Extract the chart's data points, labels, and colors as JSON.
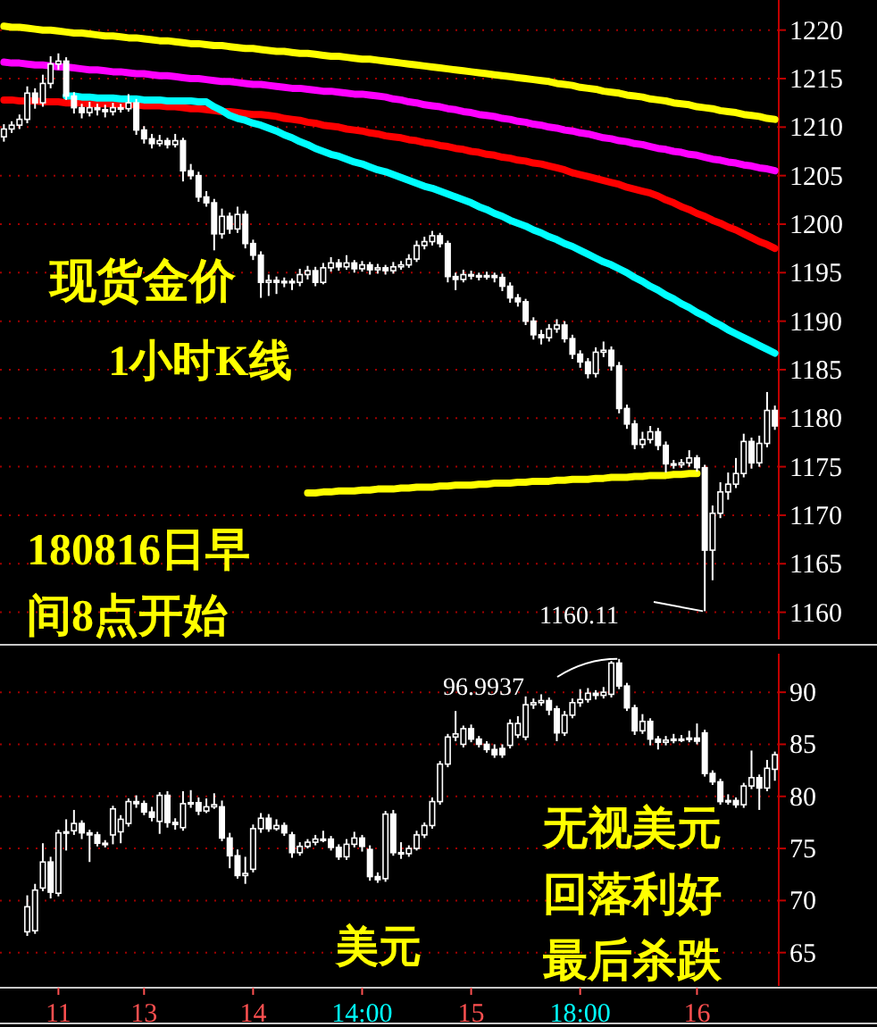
{
  "chart_data": [
    {
      "type": "candlestick",
      "tick_labels": "y",
      "grid": "y",
      "ylim": [
        1157.2,
        1223.1
      ],
      "yticks": [
        1160,
        1165,
        1170,
        1175,
        1180,
        1185,
        1190,
        1195,
        1200,
        1205,
        1210,
        1215,
        1220
      ],
      "annotations": [
        "现货金价",
        "1小时K线",
        "180816日早",
        "间8点开始",
        "1160.11"
      ],
      "series": [
        {
          "type": "candlestick",
          "color": "#ffffff",
          "ohlc": [
            [
              1209.0,
              1210.3,
              1208.5,
              1209.8
            ],
            [
              1209.8,
              1210.6,
              1209.4,
              1210.2
            ],
            [
              1210.2,
              1211.3,
              1209.8,
              1210.8
            ],
            [
              1210.8,
              1214.2,
              1210.4,
              1213.5
            ],
            [
              1213.5,
              1214.0,
              1211.9,
              1212.5
            ],
            [
              1212.5,
              1215.4,
              1212.1,
              1214.5
            ],
            [
              1214.5,
              1217.3,
              1214.0,
              1216.5
            ],
            [
              1216.5,
              1217.6,
              1215.9,
              1216.8
            ],
            [
              1216.8,
              1217.2,
              1212.8,
              1213.2
            ],
            [
              1213.2,
              1213.6,
              1211.4,
              1212.0
            ],
            [
              1212.0,
              1212.4,
              1210.9,
              1211.5
            ],
            [
              1211.5,
              1212.6,
              1211.1,
              1212.0
            ],
            [
              1212.0,
              1212.4,
              1211.2,
              1211.8
            ],
            [
              1211.8,
              1212.3,
              1211.0,
              1211.6
            ],
            [
              1211.6,
              1212.5,
              1211.2,
              1212.0
            ],
            [
              1212.0,
              1212.4,
              1211.5,
              1211.9
            ],
            [
              1211.9,
              1213.4,
              1211.6,
              1212.5
            ],
            [
              1212.5,
              1212.9,
              1209.2,
              1209.7
            ],
            [
              1209.7,
              1210.1,
              1208.3,
              1208.8
            ],
            [
              1208.8,
              1209.3,
              1207.8,
              1208.3
            ],
            [
              1208.3,
              1209.2,
              1208.0,
              1208.6
            ],
            [
              1208.6,
              1208.9,
              1207.8,
              1208.2
            ],
            [
              1208.2,
              1209.3,
              1207.9,
              1208.6
            ],
            [
              1208.6,
              1208.9,
              1204.4,
              1205.5
            ],
            [
              1205.5,
              1206.2,
              1204.6,
              1205.0
            ],
            [
              1205.0,
              1205.4,
              1202.3,
              1202.8
            ],
            [
              1202.8,
              1203.4,
              1201.8,
              1202.2
            ],
            [
              1202.2,
              1202.6,
              1197.3,
              1199.0
            ],
            [
              1199.0,
              1201.6,
              1198.5,
              1200.8
            ],
            [
              1200.8,
              1201.2,
              1199.0,
              1199.5
            ],
            [
              1199.5,
              1201.8,
              1199.1,
              1201.0
            ],
            [
              1201.0,
              1201.4,
              1197.5,
              1198.0
            ],
            [
              1198.0,
              1198.4,
              1196.3,
              1196.8
            ],
            [
              1196.8,
              1197.2,
              1192.4,
              1194.0
            ],
            [
              1194.0,
              1194.8,
              1192.6,
              1194.2
            ],
            [
              1194.2,
              1194.6,
              1192.8,
              1194.0
            ],
            [
              1194.0,
              1194.5,
              1193.5,
              1194.1
            ],
            [
              1194.1,
              1194.4,
              1193.2,
              1194.0
            ],
            [
              1194.0,
              1195.4,
              1193.6,
              1194.8
            ],
            [
              1194.8,
              1195.7,
              1194.3,
              1195.2
            ],
            [
              1195.2,
              1195.6,
              1193.6,
              1194.0
            ],
            [
              1194.0,
              1196.0,
              1193.8,
              1195.5
            ],
            [
              1195.5,
              1196.6,
              1195.1,
              1196.0
            ],
            [
              1196.0,
              1196.4,
              1195.2,
              1195.6
            ],
            [
              1195.6,
              1196.8,
              1195.3,
              1196.0
            ],
            [
              1196.0,
              1196.3,
              1195.0,
              1195.4
            ],
            [
              1195.4,
              1196.2,
              1195.1,
              1195.8
            ],
            [
              1195.8,
              1196.1,
              1194.8,
              1195.3
            ],
            [
              1195.3,
              1195.9,
              1194.9,
              1195.5
            ],
            [
              1195.5,
              1195.8,
              1194.8,
              1195.2
            ],
            [
              1195.2,
              1196.1,
              1194.9,
              1195.6
            ],
            [
              1195.6,
              1196.2,
              1195.3,
              1195.8
            ],
            [
              1195.8,
              1196.9,
              1195.5,
              1196.4
            ],
            [
              1196.4,
              1198.3,
              1196.1,
              1197.8
            ],
            [
              1197.8,
              1198.7,
              1197.4,
              1198.2
            ],
            [
              1198.2,
              1199.3,
              1197.8,
              1198.8
            ],
            [
              1198.8,
              1199.1,
              1197.6,
              1198.0
            ],
            [
              1198.0,
              1198.3,
              1194.0,
              1194.6
            ],
            [
              1194.6,
              1195.0,
              1193.2,
              1194.3
            ],
            [
              1194.3,
              1195.3,
              1194.0,
              1194.8
            ],
            [
              1194.8,
              1195.2,
              1194.3,
              1194.7
            ],
            [
              1194.7,
              1195.0,
              1194.2,
              1194.6
            ],
            [
              1194.6,
              1195.1,
              1194.3,
              1194.7
            ],
            [
              1194.7,
              1195.0,
              1194.0,
              1194.5
            ],
            [
              1194.5,
              1194.9,
              1193.1,
              1193.6
            ],
            [
              1193.6,
              1194.0,
              1191.9,
              1192.4
            ],
            [
              1192.4,
              1192.8,
              1191.5,
              1192.0
            ],
            [
              1192.0,
              1192.3,
              1189.6,
              1190.0
            ],
            [
              1190.0,
              1190.4,
              1188.1,
              1188.6
            ],
            [
              1188.6,
              1189.1,
              1187.6,
              1188.3
            ],
            [
              1188.3,
              1189.7,
              1187.9,
              1189.2
            ],
            [
              1189.2,
              1190.2,
              1188.8,
              1189.6
            ],
            [
              1189.6,
              1190.0,
              1187.8,
              1188.2
            ],
            [
              1188.2,
              1188.6,
              1186.1,
              1186.6
            ],
            [
              1186.6,
              1187.0,
              1185.2,
              1185.8
            ],
            [
              1185.8,
              1186.2,
              1184.1,
              1184.6
            ],
            [
              1184.6,
              1187.3,
              1184.2,
              1186.8
            ],
            [
              1186.8,
              1187.9,
              1186.3,
              1187.0
            ],
            [
              1187.0,
              1187.4,
              1184.9,
              1185.4
            ],
            [
              1185.4,
              1185.8,
              1180.5,
              1181.0
            ],
            [
              1181.0,
              1181.4,
              1178.9,
              1179.4
            ],
            [
              1179.4,
              1179.8,
              1176.8,
              1177.3
            ],
            [
              1177.3,
              1178.6,
              1176.9,
              1177.8
            ],
            [
              1177.8,
              1179.2,
              1177.4,
              1178.6
            ],
            [
              1178.6,
              1179.0,
              1176.7,
              1177.2
            ],
            [
              1177.2,
              1177.6,
              1174.4,
              1175.3
            ],
            [
              1175.3,
              1175.7,
              1174.8,
              1175.2
            ],
            [
              1175.2,
              1175.8,
              1174.9,
              1175.4
            ],
            [
              1175.4,
              1176.7,
              1175.0,
              1175.9
            ],
            [
              1175.9,
              1176.2,
              1174.5,
              1174.9
            ],
            [
              1174.9,
              1175.2,
              1160.11,
              1166.4
            ],
            [
              1166.4,
              1171.0,
              1163.3,
              1170.2
            ],
            [
              1170.2,
              1173.4,
              1169.7,
              1172.4
            ],
            [
              1172.4,
              1174.4,
              1171.6,
              1173.2
            ],
            [
              1173.2,
              1175.9,
              1172.8,
              1174.3
            ],
            [
              1174.3,
              1178.4,
              1173.9,
              1177.6
            ],
            [
              1177.6,
              1178.0,
              1174.8,
              1175.4
            ],
            [
              1175.4,
              1178.2,
              1175.0,
              1177.4
            ],
            [
              1177.4,
              1182.7,
              1177.0,
              1180.8
            ],
            [
              1180.8,
              1181.3,
              1178.8,
              1179.2
            ]
          ]
        },
        {
          "type": "line",
          "color": "#ffff00",
          "values": [
            1220.4,
            1220.3,
            1220.3,
            1220.2,
            1220.1,
            1220.0,
            1220.0,
            1219.9,
            1219.8,
            1219.7,
            1219.7,
            1219.6,
            1219.5,
            1219.4,
            1219.4,
            1219.3,
            1219.2,
            1219.2,
            1219.1,
            1219.0,
            1218.9,
            1218.9,
            1218.8,
            1218.7,
            1218.6,
            1218.6,
            1218.5,
            1218.4,
            1218.4,
            1218.3,
            1218.2,
            1218.1,
            1218.1,
            1218.0,
            1217.9,
            1217.8,
            1217.8,
            1217.7,
            1217.6,
            1217.6,
            1217.5,
            1217.4,
            1217.3,
            1217.3,
            1217.2,
            1217.1,
            1217.0,
            1217.0,
            1216.9,
            1216.8,
            1216.7,
            1216.6,
            1216.5,
            1216.4,
            1216.3,
            1216.2,
            1216.1,
            1216.0,
            1215.9,
            1215.8,
            1215.7,
            1215.6,
            1215.5,
            1215.4,
            1215.3,
            1215.2,
            1215.1,
            1215.0,
            1214.9,
            1214.8,
            1214.7,
            1214.5,
            1214.4,
            1214.3,
            1214.1,
            1214.0,
            1213.9,
            1213.7,
            1213.6,
            1213.5,
            1213.3,
            1213.2,
            1213.1,
            1212.9,
            1212.8,
            1212.7,
            1212.5,
            1212.4,
            1212.3,
            1212.1,
            1212.0,
            1211.9,
            1211.7,
            1211.6,
            1211.5,
            1211.3,
            1211.2,
            1211.1,
            1210.9,
            1210.8
          ]
        },
        {
          "type": "line",
          "color": "#ff00ff",
          "values": [
            1216.7,
            1216.6,
            1216.6,
            1216.5,
            1216.4,
            1216.4,
            1216.3,
            1216.2,
            1216.2,
            1216.1,
            1216.0,
            1215.9,
            1215.9,
            1215.8,
            1215.7,
            1215.7,
            1215.6,
            1215.5,
            1215.5,
            1215.4,
            1215.3,
            1215.3,
            1215.2,
            1215.1,
            1215.0,
            1215.0,
            1214.9,
            1214.8,
            1214.7,
            1214.7,
            1214.6,
            1214.5,
            1214.4,
            1214.4,
            1214.3,
            1214.2,
            1214.1,
            1214.0,
            1214.0,
            1213.9,
            1213.8,
            1213.7,
            1213.7,
            1213.6,
            1213.5,
            1213.4,
            1213.4,
            1213.3,
            1213.2,
            1213.1,
            1212.9,
            1212.8,
            1212.6,
            1212.5,
            1212.3,
            1212.2,
            1212.1,
            1211.9,
            1211.8,
            1211.6,
            1211.5,
            1211.3,
            1211.2,
            1211.1,
            1210.9,
            1210.8,
            1210.6,
            1210.5,
            1210.3,
            1210.2,
            1210.0,
            1209.9,
            1209.7,
            1209.6,
            1209.4,
            1209.3,
            1209.1,
            1208.9,
            1208.8,
            1208.6,
            1208.5,
            1208.3,
            1208.2,
            1208.0,
            1207.8,
            1207.7,
            1207.5,
            1207.4,
            1207.2,
            1207.1,
            1206.9,
            1206.7,
            1206.6,
            1206.4,
            1206.3,
            1206.1,
            1206.0,
            1205.8,
            1205.7,
            1205.5
          ]
        },
        {
          "type": "line",
          "color": "#ff0000",
          "values": [
            1212.8,
            1212.8,
            1212.7,
            1212.7,
            1212.7,
            1212.6,
            1212.6,
            1212.6,
            1212.5,
            1212.5,
            1212.5,
            1212.4,
            1212.4,
            1212.4,
            1212.4,
            1212.3,
            1212.3,
            1212.3,
            1212.2,
            1212.2,
            1212.2,
            1212.1,
            1212.1,
            1212.0,
            1211.9,
            1211.9,
            1211.8,
            1211.7,
            1211.6,
            1211.6,
            1211.5,
            1211.4,
            1211.3,
            1211.3,
            1211.2,
            1211.1,
            1210.9,
            1210.8,
            1210.7,
            1210.5,
            1210.4,
            1210.2,
            1210.1,
            1210.0,
            1209.8,
            1209.7,
            1209.6,
            1209.4,
            1209.3,
            1209.1,
            1209.0,
            1208.9,
            1208.7,
            1208.6,
            1208.4,
            1208.3,
            1208.1,
            1208.0,
            1207.8,
            1207.7,
            1207.5,
            1207.4,
            1207.2,
            1207.1,
            1206.9,
            1206.8,
            1206.6,
            1206.5,
            1206.3,
            1206.2,
            1206.0,
            1205.8,
            1205.6,
            1205.3,
            1205.1,
            1204.9,
            1204.7,
            1204.5,
            1204.3,
            1204.1,
            1203.8,
            1203.6,
            1203.4,
            1203.2,
            1202.9,
            1202.5,
            1202.2,
            1201.8,
            1201.5,
            1201.1,
            1200.8,
            1200.4,
            1200.1,
            1199.7,
            1199.4,
            1199.0,
            1198.6,
            1198.2,
            1197.9,
            1197.5
          ]
        },
        {
          "type": "line",
          "color": "#00ffff",
          "values": [
            null,
            null,
            null,
            null,
            null,
            null,
            null,
            null,
            1213.2,
            1213.2,
            1213.1,
            1213.1,
            1213.0,
            1213.0,
            1213.0,
            1212.9,
            1212.9,
            1212.9,
            1212.8,
            1212.8,
            1212.8,
            1212.7,
            1212.7,
            1212.7,
            1212.7,
            1212.6,
            1212.6,
            1212.1,
            1211.7,
            1211.2,
            1210.9,
            1210.7,
            1210.4,
            1210.2,
            1209.9,
            1209.6,
            1209.2,
            1208.9,
            1208.5,
            1208.2,
            1207.8,
            1207.5,
            1207.2,
            1207.0,
            1206.7,
            1206.4,
            1206.2,
            1205.9,
            1205.6,
            1205.4,
            1205.1,
            1204.8,
            1204.5,
            1204.2,
            1203.9,
            1203.7,
            1203.4,
            1203.1,
            1202.8,
            1202.5,
            1202.2,
            1201.8,
            1201.5,
            1201.1,
            1200.8,
            1200.4,
            1200.1,
            1199.8,
            1199.4,
            1199.1,
            1198.7,
            1198.4,
            1198.0,
            1197.7,
            1197.3,
            1196.9,
            1196.5,
            1196.1,
            1195.8,
            1195.4,
            1195.0,
            1194.5,
            1194.1,
            1193.6,
            1193.2,
            1192.7,
            1192.3,
            1191.8,
            1191.4,
            1190.9,
            1190.5,
            1190.0,
            1189.6,
            1189.1,
            1188.7,
            1188.3,
            1187.9,
            1187.5,
            1187.1,
            1186.7
          ]
        },
        {
          "type": "line",
          "color": "#ffff00",
          "values": [
            null,
            null,
            null,
            null,
            null,
            null,
            null,
            null,
            null,
            null,
            null,
            null,
            null,
            null,
            null,
            null,
            null,
            null,
            null,
            null,
            null,
            null,
            null,
            null,
            null,
            null,
            null,
            null,
            null,
            null,
            null,
            null,
            null,
            null,
            null,
            null,
            null,
            null,
            null,
            1172.3,
            1172.3,
            1172.4,
            1172.4,
            1172.5,
            1172.5,
            1172.5,
            1172.6,
            1172.6,
            1172.7,
            1172.7,
            1172.7,
            1172.8,
            1172.8,
            1172.9,
            1172.9,
            1172.9,
            1173.0,
            1173.0,
            1173.1,
            1173.1,
            1173.1,
            1173.2,
            1173.2,
            1173.3,
            1173.3,
            1173.3,
            1173.4,
            1173.4,
            1173.5,
            1173.5,
            1173.5,
            1173.6,
            1173.6,
            1173.7,
            1173.7,
            1173.7,
            1173.8,
            1173.8,
            1173.9,
            1173.9,
            1173.9,
            1174.0,
            1174.0,
            1174.1,
            1174.1,
            1174.1,
            1174.2,
            1174.2,
            1174.3,
            1174.3,
            null,
            null,
            null,
            null,
            null,
            null,
            null,
            null,
            null,
            null
          ]
        }
      ]
    },
    {
      "type": "candlestick",
      "grid": "y",
      "ylim": [
        61.8,
        93.7
      ],
      "yticks": [
        65,
        70,
        75,
        80,
        85,
        90
      ],
      "categories": [
        null,
        null,
        null,
        null,
        null,
        null,
        null,
        "11",
        null,
        null,
        null,
        null,
        null,
        null,
        null,
        null,
        null,
        null,
        "13",
        null,
        null,
        null,
        null,
        null,
        null,
        null,
        null,
        null,
        null,
        null,
        null,
        null,
        "14",
        null,
        null,
        null,
        null,
        null,
        null,
        null,
        null,
        null,
        null,
        null,
        null,
        null,
        "14:00",
        null,
        null,
        null,
        null,
        null,
        null,
        null,
        null,
        null,
        null,
        null,
        null,
        null,
        "15",
        null,
        null,
        null,
        null,
        null,
        null,
        null,
        null,
        null,
        null,
        null,
        null,
        null,
        "18:00",
        null,
        null,
        null,
        null,
        null,
        null,
        null,
        null,
        null,
        null,
        null,
        null,
        null,
        null,
        "16",
        null,
        null,
        null,
        null,
        null,
        null,
        null,
        null,
        null,
        null
      ],
      "annotations": [
        "96.9937",
        "美元",
        "无视美元",
        "回落利好",
        "最后杀跌"
      ],
      "series": [
        {
          "type": "candlestick",
          "color": "#ffffff",
          "ohlc": [
            null,
            null,
            null,
            [
              67.0,
              70.5,
              66.6,
              69.4
            ],
            [
              67.1,
              71.6,
              66.8,
              71.0
            ],
            [
              71.2,
              75.5,
              70.9,
              73.7
            ],
            [
              73.7,
              74.2,
              70.2,
              70.8
            ],
            [
              70.7,
              76.8,
              70.4,
              76.5
            ],
            [
              76.5,
              77.8,
              74.8,
              76.6
            ],
            [
              76.7,
              78.7,
              76.3,
              77.4
            ],
            [
              77.4,
              77.7,
              75.9,
              76.5
            ],
            [
              76.5,
              76.8,
              73.7,
              76.3
            ],
            [
              76.3,
              76.6,
              75.2,
              75.5
            ],
            [
              75.5,
              75.8,
              75.1,
              75.4
            ],
            [
              76.3,
              79.1,
              75.4,
              78.8
            ],
            [
              76.6,
              78.2,
              75.5,
              77.8
            ],
            [
              77.4,
              79.8,
              77.1,
              79.5
            ],
            [
              79.5,
              80.1,
              78.9,
              79.3
            ],
            [
              79.3,
              79.6,
              78.2,
              78.5
            ],
            [
              78.5,
              79.0,
              77.6,
              78.0
            ],
            [
              77.6,
              80.4,
              76.4,
              80.1
            ],
            [
              80.1,
              80.5,
              77.0,
              77.5
            ],
            [
              77.5,
              77.9,
              76.8,
              77.3
            ],
            [
              77.0,
              80.5,
              76.7,
              79.3
            ],
            [
              79.3,
              80.6,
              78.9,
              79.4
            ],
            [
              79.4,
              79.9,
              78.2,
              78.6
            ],
            [
              78.6,
              79.8,
              78.4,
              79.0
            ],
            [
              79.0,
              80.3,
              78.8,
              79.2
            ],
            [
              79.0,
              79.6,
              75.7,
              76.0
            ],
            [
              76.0,
              76.5,
              73.1,
              74.3
            ],
            [
              74.3,
              74.9,
              72.1,
              72.4
            ],
            [
              72.4,
              74.2,
              71.6,
              72.6
            ],
            [
              73.0,
              77.3,
              72.7,
              76.9
            ],
            [
              76.9,
              78.4,
              76.5,
              77.9
            ],
            [
              77.9,
              78.3,
              76.6,
              76.9
            ],
            [
              76.9,
              77.8,
              76.7,
              77.2
            ],
            [
              77.2,
              77.5,
              76.2,
              76.5
            ],
            [
              76.3,
              76.6,
              74.1,
              74.6
            ],
            [
              74.6,
              75.6,
              74.3,
              75.2
            ],
            [
              75.2,
              75.9,
              75.0,
              75.6
            ],
            [
              75.6,
              76.3,
              75.3,
              75.9
            ],
            [
              75.9,
              76.7,
              75.6,
              75.9
            ],
            [
              75.9,
              76.2,
              74.8,
              75.1
            ],
            [
              75.1,
              75.4,
              73.9,
              74.2
            ],
            [
              74.2,
              75.9,
              73.9,
              75.4
            ],
            [
              75.4,
              76.6,
              75.1,
              76.0
            ],
            [
              76.0,
              76.3,
              74.7,
              75.2
            ],
            [
              74.9,
              75.3,
              71.9,
              72.3
            ],
            [
              72.3,
              72.7,
              71.7,
              72.0
            ],
            [
              72.1,
              78.6,
              71.8,
              78.3
            ],
            [
              78.3,
              78.7,
              74.3,
              74.6
            ],
            [
              74.6,
              75.6,
              74.0,
              74.5
            ],
            [
              74.5,
              75.3,
              74.2,
              75.0
            ],
            [
              75.0,
              76.7,
              74.8,
              76.3
            ],
            [
              76.3,
              77.5,
              76.0,
              77.2
            ],
            [
              77.2,
              79.9,
              76.9,
              79.5
            ],
            [
              79.5,
              83.4,
              79.2,
              83.1
            ],
            [
              83.1,
              86.0,
              82.8,
              85.7
            ],
            [
              85.7,
              88.2,
              85.3,
              86.0
            ],
            [
              85.0,
              86.8,
              84.7,
              86.5
            ],
            [
              86.5,
              86.9,
              85.2,
              85.5
            ],
            [
              85.5,
              85.8,
              84.7,
              85.0
            ],
            [
              85.0,
              85.3,
              84.2,
              84.5
            ],
            [
              84.5,
              85.0,
              83.7,
              84.0
            ],
            [
              84.6,
              85.0,
              83.7,
              84.0
            ],
            [
              84.9,
              87.4,
              84.6,
              87.0
            ],
            [
              85.9,
              87.7,
              85.6,
              87.0
            ],
            [
              85.7,
              89.6,
              85.4,
              88.8
            ],
            [
              88.8,
              89.4,
              88.4,
              89.0
            ],
            [
              89.0,
              89.8,
              88.7,
              89.2
            ],
            [
              89.2,
              89.5,
              87.8,
              88.3
            ],
            [
              88.4,
              88.7,
              85.3,
              86.1
            ],
            [
              86.1,
              88.2,
              85.8,
              87.8
            ],
            [
              87.8,
              89.4,
              87.5,
              89.0
            ],
            [
              89.0,
              90.3,
              88.6,
              89.3
            ],
            [
              89.3,
              90.4,
              89.0,
              89.9
            ],
            [
              89.9,
              90.2,
              89.3,
              89.7
            ],
            [
              89.7,
              90.5,
              89.4,
              90.0
            ],
            [
              89.8,
              93.0,
              89.5,
              92.8
            ],
            [
              92.8,
              93.2,
              90.3,
              90.6
            ],
            [
              90.6,
              90.9,
              88.2,
              88.5
            ],
            [
              88.5,
              88.8,
              85.9,
              86.3
            ],
            [
              86.3,
              87.9,
              86.0,
              87.2
            ],
            [
              87.2,
              87.5,
              84.9,
              85.5
            ],
            [
              85.5,
              85.8,
              84.5,
              85.2
            ],
            [
              85.2,
              85.8,
              84.9,
              85.4
            ],
            [
              85.4,
              86.0,
              85.1,
              85.5
            ],
            [
              85.5,
              85.9,
              85.2,
              85.5
            ],
            [
              85.5,
              86.3,
              85.2,
              85.6
            ],
            [
              85.6,
              87.0,
              85.0,
              85.3
            ],
            [
              86.1,
              86.4,
              81.9,
              82.2
            ],
            [
              82.2,
              82.5,
              81.1,
              81.4
            ],
            [
              81.4,
              81.7,
              79.2,
              79.5
            ],
            [
              79.5,
              80.2,
              79.2,
              79.6
            ],
            [
              79.6,
              79.9,
              78.9,
              79.2
            ],
            [
              79.2,
              81.3,
              78.9,
              81.0
            ],
            [
              81.0,
              84.4,
              80.7,
              81.8
            ],
            [
              81.8,
              82.1,
              78.7,
              80.8
            ],
            [
              80.8,
              83.5,
              80.5,
              82.7
            ],
            [
              82.6,
              84.3,
              81.5,
              84.0
            ]
          ]
        }
      ]
    }
  ]
}
